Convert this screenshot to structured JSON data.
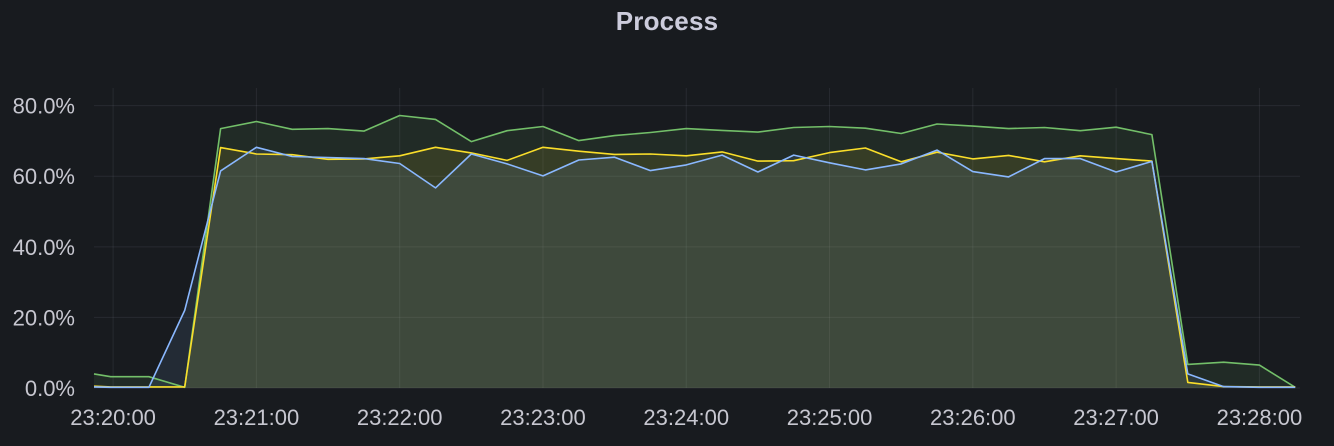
{
  "panel": {
    "title": "Process"
  },
  "chart_data": {
    "type": "area",
    "title": "Process",
    "xlabel": "",
    "ylabel": "",
    "ylim": [
      0,
      85
    ],
    "xlim": [
      "23:19:52",
      "23:28:17"
    ],
    "grid": true,
    "legend": "none",
    "y_ticks": [
      {
        "value": 0,
        "label": "0.0%"
      },
      {
        "value": 20,
        "label": "20.0%"
      },
      {
        "value": 40,
        "label": "40.0%"
      },
      {
        "value": 60,
        "label": "60.0%"
      },
      {
        "value": 80,
        "label": "80.0%"
      }
    ],
    "x_ticks": [
      {
        "value": "23:20:00",
        "label": "23:20:00"
      },
      {
        "value": "23:21:00",
        "label": "23:21:00"
      },
      {
        "value": "23:22:00",
        "label": "23:22:00"
      },
      {
        "value": "23:23:00",
        "label": "23:23:00"
      },
      {
        "value": "23:24:00",
        "label": "23:24:00"
      },
      {
        "value": "23:25:00",
        "label": "23:25:00"
      },
      {
        "value": "23:26:00",
        "label": "23:26:00"
      },
      {
        "value": "23:27:00",
        "label": "23:27:00"
      },
      {
        "value": "23:28:00",
        "label": "23:28:00"
      }
    ],
    "series": [
      {
        "color": "#73bf69",
        "points": [
          [
            "23:19:52",
            4.0
          ],
          [
            "23:19:59",
            3.2
          ],
          [
            "23:20:15",
            3.2
          ],
          [
            "23:20:30",
            0.2
          ],
          [
            "23:20:45",
            73.5
          ],
          [
            "23:21:00",
            75.5
          ],
          [
            "23:21:15",
            73.3
          ],
          [
            "23:21:30",
            73.5
          ],
          [
            "23:21:45",
            72.8
          ],
          [
            "23:22:00",
            77.2
          ],
          [
            "23:22:15",
            76.1
          ],
          [
            "23:22:30",
            69.8
          ],
          [
            "23:22:45",
            72.9
          ],
          [
            "23:23:00",
            74.1
          ],
          [
            "23:23:15",
            70.1
          ],
          [
            "23:23:30",
            71.5
          ],
          [
            "23:23:45",
            72.4
          ],
          [
            "23:24:00",
            73.5
          ],
          [
            "23:24:15",
            73.0
          ],
          [
            "23:24:30",
            72.5
          ],
          [
            "23:24:45",
            73.8
          ],
          [
            "23:25:00",
            74.1
          ],
          [
            "23:25:15",
            73.6
          ],
          [
            "23:25:30",
            72.1
          ],
          [
            "23:25:45",
            74.8
          ],
          [
            "23:26:00",
            74.2
          ],
          [
            "23:26:15",
            73.5
          ],
          [
            "23:26:30",
            73.8
          ],
          [
            "23:26:45",
            72.9
          ],
          [
            "23:27:00",
            73.9
          ],
          [
            "23:27:15",
            71.8
          ],
          [
            "23:27:30",
            6.7
          ],
          [
            "23:27:45",
            7.3
          ],
          [
            "23:28:00",
            6.5
          ],
          [
            "23:28:15",
            0.2
          ]
        ]
      },
      {
        "color": "#fade2a",
        "points": [
          [
            "23:19:52",
            0.5
          ],
          [
            "23:19:59",
            0.3
          ],
          [
            "23:20:15",
            0.3
          ],
          [
            "23:20:30",
            0.3
          ],
          [
            "23:20:45",
            68.1
          ],
          [
            "23:21:00",
            66.3
          ],
          [
            "23:21:15",
            66.1
          ],
          [
            "23:21:30",
            64.8
          ],
          [
            "23:21:45",
            64.9
          ],
          [
            "23:22:00",
            65.8
          ],
          [
            "23:22:15",
            68.2
          ],
          [
            "23:22:30",
            66.6
          ],
          [
            "23:22:45",
            64.5
          ],
          [
            "23:23:00",
            68.2
          ],
          [
            "23:23:15",
            67.1
          ],
          [
            "23:23:30",
            66.2
          ],
          [
            "23:23:45",
            66.3
          ],
          [
            "23:24:00",
            65.8
          ],
          [
            "23:24:15",
            66.9
          ],
          [
            "23:24:30",
            64.3
          ],
          [
            "23:24:45",
            64.4
          ],
          [
            "23:25:00",
            66.7
          ],
          [
            "23:25:15",
            68.0
          ],
          [
            "23:25:30",
            64.1
          ],
          [
            "23:25:45",
            66.8
          ],
          [
            "23:26:00",
            64.9
          ],
          [
            "23:26:15",
            65.9
          ],
          [
            "23:26:30",
            64.1
          ],
          [
            "23:26:45",
            65.8
          ],
          [
            "23:27:00",
            65.0
          ],
          [
            "23:27:15",
            64.3
          ],
          [
            "23:27:30",
            1.6
          ],
          [
            "23:27:45",
            0.4
          ],
          [
            "23:28:00",
            0.3
          ],
          [
            "23:28:15",
            0.3
          ]
        ]
      },
      {
        "color": "#8ab8ff",
        "points": [
          [
            "23:19:52",
            0.3
          ],
          [
            "23:19:59",
            0.2
          ],
          [
            "23:20:15",
            0.2
          ],
          [
            "23:20:30",
            22.0
          ],
          [
            "23:20:45",
            61.5
          ],
          [
            "23:21:00",
            68.2
          ],
          [
            "23:21:15",
            65.6
          ],
          [
            "23:21:30",
            65.3
          ],
          [
            "23:21:45",
            65.0
          ],
          [
            "23:22:00",
            63.6
          ],
          [
            "23:22:15",
            56.7
          ],
          [
            "23:22:30",
            66.3
          ],
          [
            "23:22:45",
            63.5
          ],
          [
            "23:23:00",
            60.1
          ],
          [
            "23:23:15",
            64.6
          ],
          [
            "23:23:30",
            65.4
          ],
          [
            "23:23:45",
            61.6
          ],
          [
            "23:24:00",
            63.2
          ],
          [
            "23:24:15",
            66.0
          ],
          [
            "23:24:30",
            61.2
          ],
          [
            "23:24:45",
            66.0
          ],
          [
            "23:25:00",
            63.8
          ],
          [
            "23:25:15",
            61.8
          ],
          [
            "23:25:30",
            63.5
          ],
          [
            "23:25:45",
            67.4
          ],
          [
            "23:26:00",
            61.3
          ],
          [
            "23:26:15",
            59.8
          ],
          [
            "23:26:30",
            65.0
          ],
          [
            "23:26:45",
            65.0
          ],
          [
            "23:27:00",
            61.2
          ],
          [
            "23:27:15",
            64.2
          ],
          [
            "23:27:30",
            4.0
          ],
          [
            "23:27:45",
            0.4
          ],
          [
            "23:28:00",
            0.2
          ],
          [
            "23:28:15",
            0.2
          ]
        ]
      }
    ]
  }
}
